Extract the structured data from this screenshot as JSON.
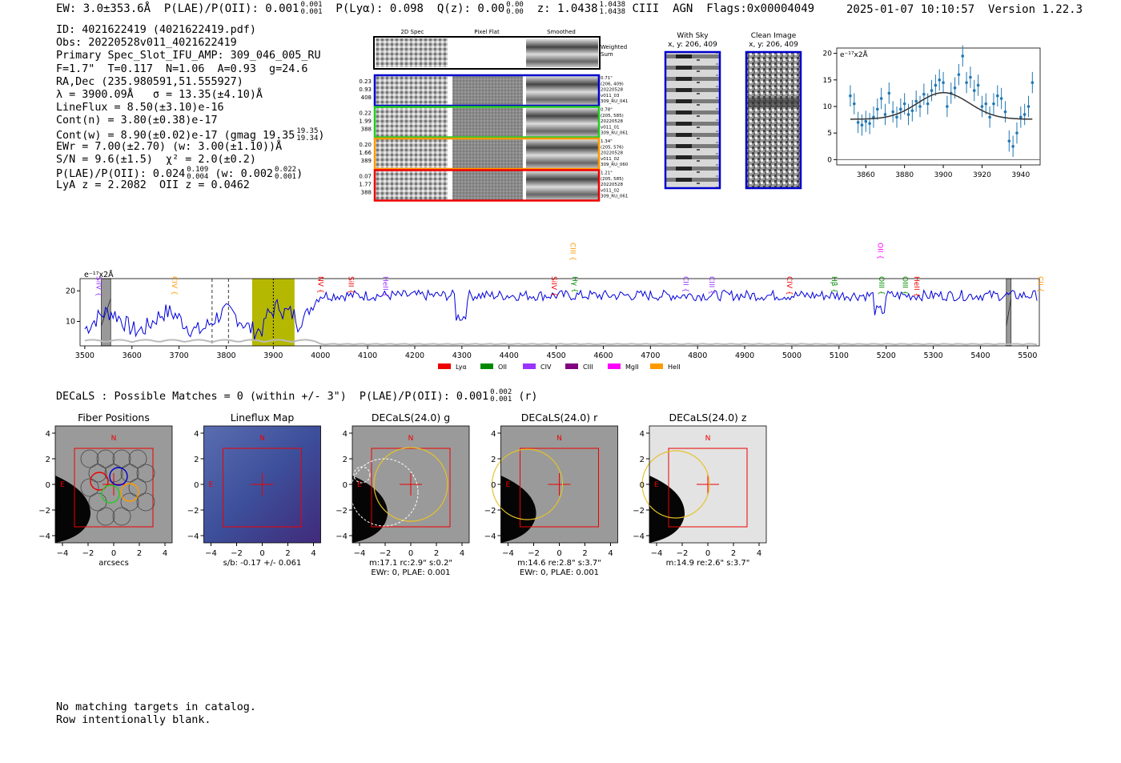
{
  "header": {
    "ew": "EW: 3.0±353.6Å",
    "plae_label": "P(LAE)/P(OII): 0.001",
    "plae_hi": "0.001",
    "plae_lo": "0.001",
    "plya": "P(Lyα): 0.098",
    "qz_label": "Q(z): 0.00",
    "qz_hi": "0.00",
    "qz_lo": "0.00",
    "z_label": "z: 1.0438",
    "z_hi": "1.0438",
    "z_lo": "1.0438",
    "line_id": "CIII",
    "agn": "AGN",
    "flags": "Flags:0x00004049",
    "timestamp": "2025-01-07 10:10:57",
    "version": "Version 1.22.3"
  },
  "info": {
    "id": "ID: 4021622419 (4021622419.pdf)",
    "obs": "Obs: 20220528v011_4021622419",
    "spec": "Primary Spec_Slot_IFU_AMP: 309_046_005_RU",
    "params": "F=1.7\"  T=0.117  N=1.06  A=0.93  g=24.6",
    "radec": "RA,Dec (235.980591,51.555927)",
    "lambda": "λ = 3900.09Å   σ = 13.35(±4.10)Å",
    "lineflux": "LineFlux = 8.50(±3.10)e-16",
    "cont_n": "Cont(n) = 3.80(±0.38)e-17",
    "cont_w": "Cont(w) = 8.90(±0.02)e-17 (gmag 19.35",
    "gmag_hi": "19.35",
    "gmag_lo": "19.34",
    "cont_w_end": ")",
    "ewr": "EWr = 7.00(±2.70) (w: 3.00(±1.10))Å",
    "sn": "S/N = 9.6(±1.5)  χ² = 2.0(±0.2)",
    "plae2": "P(LAE)/P(OII): 0.024",
    "plae2_hi": "0.109",
    "plae2_lo": "0.004",
    "plae2_w": "(w: 0.002",
    "plae2_w_hi": "0.022",
    "plae2_w_lo": "0.001",
    "plae2_end": ")",
    "z_line": "LyA z = 2.2082  OII z = 0.0462"
  },
  "cutouts": {
    "col_titles": [
      "2D Spec",
      "Pixel Flat",
      "Smoothed"
    ],
    "weighted_label": "Weighted\nSum",
    "rows": [
      {
        "left": [
          "0.23",
          "0.93",
          "408"
        ],
        "right": [
          "0.71\"",
          "(206, 409)",
          "20220528",
          "v011_03",
          "309_RU_041"
        ],
        "color": "#0000cc"
      },
      {
        "left": [
          "0.22",
          "1.99",
          "388"
        ],
        "right": [
          "0.78\"",
          "(205, 585)",
          "20220528",
          "v011_01",
          "309_RU_061"
        ],
        "color": "#22cc22"
      },
      {
        "left": [
          "0.20",
          "1.66",
          "389"
        ],
        "right": [
          "1.34\"",
          "(205, 576)",
          "20220528",
          "v011_02",
          "309_RU_060"
        ],
        "color": "#ff9900"
      },
      {
        "left": [
          "0.07",
          "1.77",
          "388"
        ],
        "right": [
          "1.21\"",
          "(205, 585)",
          "20220528",
          "v011_02",
          "309_RU_061"
        ],
        "color": "#ee0000"
      }
    ]
  },
  "sky": {
    "with_sky_title": "With Sky",
    "with_sky_coords": "x, y: 206, 409",
    "clean_title": "Clean Image",
    "clean_coords": "x, y: 206, 409"
  },
  "chart_data": [
    {
      "type": "line",
      "name": "line-fit",
      "ylabel_corner": "e⁻¹⁷x2Å",
      "xlim": [
        3845,
        3950
      ],
      "ylim": [
        -1,
        21
      ],
      "xticks": [
        3860,
        3880,
        3900,
        3920,
        3940
      ],
      "yticks": [
        0,
        5,
        10,
        15,
        20
      ],
      "data_x": [
        3852,
        3854,
        3856,
        3858,
        3860,
        3862,
        3864,
        3866,
        3868,
        3870,
        3872,
        3874,
        3876,
        3878,
        3880,
        3882,
        3884,
        3886,
        3888,
        3890,
        3892,
        3894,
        3896,
        3898,
        3900,
        3902,
        3904,
        3906,
        3908,
        3910,
        3912,
        3914,
        3916,
        3918,
        3920,
        3922,
        3924,
        3926,
        3928,
        3930,
        3932,
        3934,
        3936,
        3938,
        3940,
        3942,
        3944,
        3946
      ],
      "data_y": [
        12,
        10.5,
        7,
        6.5,
        7.2,
        6.8,
        8,
        9.5,
        11.5,
        8.5,
        12.5,
        9,
        8,
        9.5,
        10.5,
        8.5,
        9.2,
        11,
        10,
        12.3,
        10.5,
        13,
        14,
        15,
        14.5,
        10,
        12.5,
        13.5,
        16,
        19.5,
        14.5,
        15.5,
        13,
        14,
        10,
        10.5,
        8,
        10.5,
        12,
        11.5,
        9,
        3.5,
        2.5,
        5,
        8,
        8.5,
        10,
        14.5
      ],
      "err": 2.0,
      "fit_model": {
        "continuum": 7.6,
        "amplitude": 5.0,
        "center": 3900.09,
        "sigma": 13.35
      }
    },
    {
      "type": "line",
      "name": "full-spectrum",
      "ylabel_corner": "e⁻¹⁷x2Å",
      "xlim": [
        3490,
        5525
      ],
      "ylim": [
        2,
        24
      ],
      "xticks": [
        3500,
        3600,
        3700,
        3800,
        3900,
        4000,
        4100,
        4200,
        4300,
        4400,
        4500,
        4600,
        4700,
        4800,
        4900,
        5000,
        5100,
        5200,
        5300,
        5400,
        5500
      ],
      "yticks": [
        10,
        20
      ],
      "highlight_range": [
        3855,
        3945
      ],
      "dashed_lines": [
        3770,
        3805
      ],
      "dotted_line": 3900,
      "masked_ranges": [
        [
          3535,
          3555
        ],
        [
          5455,
          5465
        ]
      ],
      "line_markers": [
        {
          "name": "SiIV",
          "wave": 3520,
          "color": "#9933ff",
          "tier": 1
        },
        {
          "name": "CIV",
          "wave": 3680,
          "color": "#ff9900",
          "tier": 1
        },
        {
          "name": "NV",
          "wave": 3990,
          "color": "#ee0000",
          "tier": 1
        },
        {
          "name": "SiII",
          "wave": 4055,
          "color": "#ee0000",
          "tier": 1
        },
        {
          "name": "HeII",
          "wave": 4128,
          "color": "#9933ff",
          "tier": 1
        },
        {
          "name": "SiIV",
          "wave": 4485,
          "color": "#ee0000",
          "tier": 1
        },
        {
          "name": "CIII",
          "wave": 4525,
          "color": "#ff9900",
          "tier": 2
        },
        {
          "name": "Hγ",
          "wave": 4530,
          "color": "#008800",
          "tier": 1
        },
        {
          "name": "CII",
          "wave": 4765,
          "color": "#9933ff",
          "tier": 1
        },
        {
          "name": "CIII",
          "wave": 4820,
          "color": "#9933ff",
          "tier": 1
        },
        {
          "name": "CIV",
          "wave": 4985,
          "color": "#ee0000",
          "tier": 1
        },
        {
          "name": "Hβ",
          "wave": 5080,
          "color": "#008800",
          "tier": 1
        },
        {
          "name": "OIII",
          "wave": 5180,
          "color": "#008800",
          "tier": 1
        },
        {
          "name": "OII",
          "wave": 5178,
          "color": "#ff00ff",
          "tier": 2
        },
        {
          "name": "OIII",
          "wave": 5230,
          "color": "#008800",
          "tier": 1
        },
        {
          "name": "HeII",
          "wave": 5255,
          "color": "#ee0000",
          "tier": 1
        },
        {
          "name": "CII",
          "wave": 5517,
          "color": "#ff9900",
          "tier": 1
        }
      ],
      "legend": [
        {
          "name": "Lyα",
          "color": "#ee0000"
        },
        {
          "name": "OII",
          "color": "#008800"
        },
        {
          "name": "CIV",
          "color": "#9933ff"
        },
        {
          "name": "CIII",
          "color": "#800080"
        },
        {
          "name": "MgII",
          "color": "#ff00ff"
        },
        {
          "name": "HeII",
          "color": "#ff9900"
        }
      ]
    }
  ],
  "decals": {
    "summary": "DECaLS : Possible Matches = 0 (within +/- 3\")  P(LAE)/P(OII): 0.001",
    "summary_hi": "0.002",
    "summary_lo": "0.001",
    "summary_end": "(r)",
    "panels": [
      {
        "title": "Fiber Positions",
        "caption1": "arcsecs",
        "caption2": ""
      },
      {
        "title": "Lineflux Map",
        "caption1": "s/b: -0.17 +/- 0.061",
        "caption2": ""
      },
      {
        "title": "DECaLS(24.0) g",
        "caption1": "m:17.1 rc:2.9\"  s:0.2\"",
        "caption2": "EWr: 0, PLAE: 0.001"
      },
      {
        "title": "DECaLS(24.0) r",
        "caption1": "m:14.6  re:2.8\"  s:3.7\"",
        "caption2": "EWr: 0, PLAE: 0.001"
      },
      {
        "title": "DECaLS(24.0) z",
        "caption1": "m:14.9  re:2.6\"  s:3.7\"",
        "caption2": ""
      }
    ],
    "axis_ticks": [
      "−4",
      "−2",
      "0",
      "2",
      "4"
    ],
    "north": "N",
    "east": "E"
  },
  "footer": {
    "line1": "No matching targets in catalog.",
    "line2": "Row intentionally blank."
  },
  "colors": {
    "spectrum": "#0000dd",
    "fit_points": "#1f77b4",
    "fit_curve": "#333333",
    "highlight": "#b5b800",
    "frame_red": "#ee0000",
    "frame_blue": "#0000cc"
  }
}
